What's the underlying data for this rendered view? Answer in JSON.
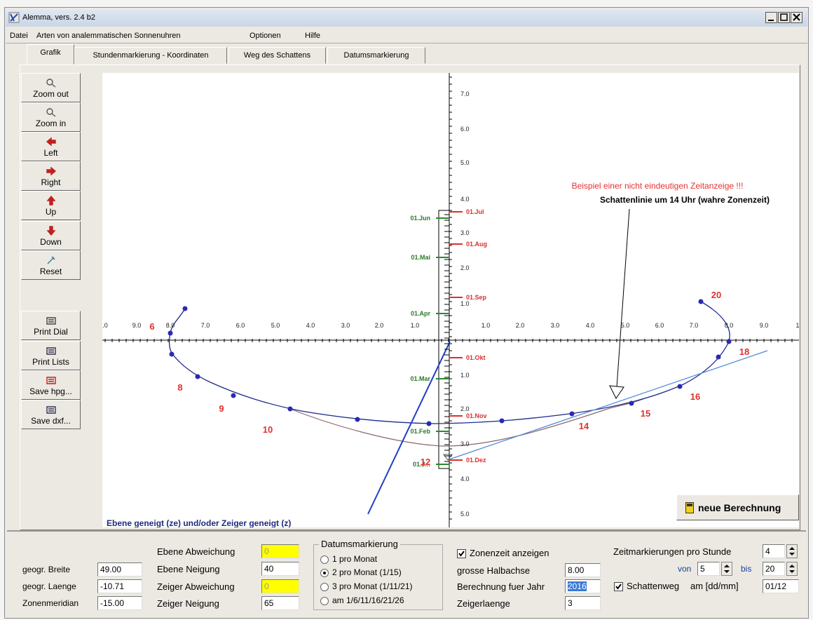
{
  "window": {
    "title": "Alemma,  vers. 2.4 b2"
  },
  "menu": [
    "Datei",
    "Arten von analemmatischen Sonnenuhren",
    "Optionen",
    "Hilfe"
  ],
  "tabs": [
    "Grafik",
    "Stundenmarkierung - Koordinaten",
    "Weg des Schattens",
    "Datumsmarkierung"
  ],
  "toolbar": [
    "Zoom out",
    "Zoom in",
    "Left",
    "Right",
    "Up",
    "Down",
    "Reset",
    "Print Dial",
    "Print Lists",
    "Save hpg...",
    "Save dxf..."
  ],
  "plot": {
    "x_labels": [
      ".0",
      "9.0",
      "8.0",
      "7.0",
      "6.0",
      "5.0",
      "4.0",
      "3.0",
      "2.0",
      "1.0",
      "1.0",
      "2.0",
      "3.0",
      "4.0",
      "5.0",
      "6.0",
      "7.0",
      "8.0",
      "9.0",
      "1"
    ],
    "y_labels": [
      "7.0",
      "6.0",
      "5.0",
      "4.0",
      "3.0",
      "2.0",
      "1.0",
      "1.0",
      "2.0",
      "3.0",
      "4.0",
      "5.0"
    ],
    "dates_left": [
      "01.Jun",
      "01.Mai",
      "01.Apr",
      "01.Mar",
      "01.Feb",
      "01.J..."
    ],
    "dates_right": [
      "01.Jul",
      "01.Aug",
      "01.Sep",
      "01.Okt",
      "01.Nov",
      "01.Dez"
    ],
    "hours": [
      "6",
      "8",
      "9",
      "10",
      "12",
      "14",
      "15",
      "16",
      "18",
      "20"
    ],
    "note": "Beispiel einer nicht eindeutigen Zeitanzeige !!!",
    "shadow_line": "Schattenlinie um 14 Uhr (wahre Zonenzeit)",
    "mode": "Ebene geneigt (ze) und/oder Zeiger geneigt (z)"
  },
  "button": "neue Berechnung",
  "form": {
    "location": [
      {
        "label": "geogr. Breite",
        "value": "49.00"
      },
      {
        "label": "geogr. Laenge",
        "value": "-10.71"
      },
      {
        "label": "Zonenmeridian",
        "value": "-15.00"
      }
    ],
    "orientation": [
      {
        "label": "Ebene Abweichung",
        "value": "0"
      },
      {
        "label": "Ebene Neigung",
        "value": "40"
      },
      {
        "label": "Zeiger Abweichung",
        "value": "0"
      },
      {
        "label": "Zeiger Neigung",
        "value": "65"
      }
    ],
    "date_marking": {
      "title": "Datumsmarkierung",
      "options": [
        "1 pro Monat",
        "2 pro Monat (1/15)",
        "3 pro Monat (1/11/21)",
        "am 1/6/11/16/21/26"
      ],
      "selected": 1
    },
    "zone_time": {
      "label": "Zonenzeit anzeigen",
      "checked": true
    },
    "dimensions": [
      {
        "label": "grosse Halbachse",
        "value": "8.00"
      },
      {
        "label": "Berechnung fuer Jahr",
        "value": "2016"
      },
      {
        "label": "Zeigerlaenge",
        "value": "3"
      }
    ],
    "time_marks": {
      "label": "Zeitmarkierungen  pro Stunde",
      "value": "4",
      "from_label": "von",
      "from": "5",
      "to_label": "bis",
      "to": "20"
    },
    "shadow_path": {
      "label": "Schattenweg",
      "checked": true,
      "date_label": "am [dd/mm]",
      "date": "01/12"
    }
  }
}
